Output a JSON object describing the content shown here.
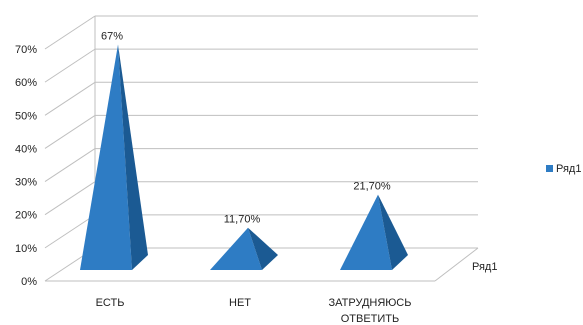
{
  "chart_data": {
    "type": "bar",
    "shape": "pyramid-3d",
    "title": "",
    "xlabel": "",
    "ylabel": "",
    "categories": [
      "ЕСТЬ",
      "НЕТ",
      "ЗАТРУДНЯЮСЬ ОТВЕТИТЬ"
    ],
    "category_lines": [
      [
        "ЕСТЬ"
      ],
      [
        "НЕТ"
      ],
      [
        "ЗАТРУДНЯЮСЬ",
        "ОТВЕТИТЬ"
      ]
    ],
    "series": [
      {
        "name": "Ряд1",
        "values": [
          67,
          11.7,
          21.7
        ],
        "data_labels": [
          "67%",
          "11,70%",
          "21,70%"
        ]
      }
    ],
    "ylim": [
      0,
      70
    ],
    "yticks": [
      "0%",
      "10%",
      "20%",
      "30%",
      "40%",
      "50%",
      "60%",
      "70%"
    ],
    "depth_axis_label": "Ряд1",
    "legend": {
      "position": "right",
      "entries": [
        "Ряд1"
      ]
    },
    "grid": true,
    "colors": {
      "front": "#2e7cc4",
      "side": "#1b5a93",
      "grid": "#bfbfbf"
    }
  }
}
